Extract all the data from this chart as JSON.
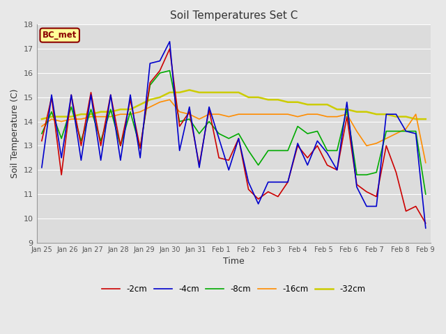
{
  "title": "Soil Temperatures Set C",
  "xlabel": "Time",
  "ylabel": "Soil Temperature (C)",
  "ylim": [
    9.0,
    18.0
  ],
  "yticks": [
    9.0,
    10.0,
    11.0,
    12.0,
    13.0,
    14.0,
    15.0,
    16.0,
    17.0,
    18.0
  ],
  "annotation_text": "BC_met",
  "annotation_bg": "#FFFF99",
  "annotation_edge": "#8B0000",
  "fig_bg": "#E8E8E8",
  "plot_bg": "#DCDCDC",
  "series": {
    "-2cm": {
      "color": "#CC0000",
      "lw": 1.2
    },
    "-4cm": {
      "color": "#0000CC",
      "lw": 1.2
    },
    "-8cm": {
      "color": "#00AA00",
      "lw": 1.2
    },
    "-16cm": {
      "color": "#FF8C00",
      "lw": 1.2
    },
    "-32cm": {
      "color": "#CCCC00",
      "lw": 1.8
    }
  },
  "xtick_labels": [
    "Jan 25",
    "Jan 26",
    "Jan 27",
    "Jan 28",
    "Jan 29",
    "Jan 30",
    "Jan 31",
    "Feb 1",
    "Feb 2",
    "Feb 3",
    "Feb 4",
    "Feb 5",
    "Feb 6",
    "Feb 7",
    "Feb 8",
    "Feb 9"
  ],
  "data_2cm": [
    13.2,
    15.0,
    11.8,
    15.1,
    13.0,
    15.2,
    13.0,
    15.1,
    13.0,
    14.9,
    12.9,
    15.6,
    16.1,
    17.0,
    13.8,
    14.4,
    12.2,
    14.5,
    12.5,
    12.4,
    13.3,
    11.2,
    10.8,
    11.1,
    10.9,
    11.5,
    13.0,
    12.5,
    13.0,
    12.2,
    12.0,
    14.2,
    11.4,
    11.1,
    10.9,
    13.0,
    11.9,
    10.3,
    10.5,
    9.8
  ],
  "data_4cm": [
    12.1,
    15.1,
    12.5,
    15.1,
    12.4,
    15.1,
    12.4,
    15.1,
    12.4,
    15.1,
    12.5,
    16.4,
    16.5,
    17.3,
    12.8,
    14.6,
    12.1,
    14.6,
    13.3,
    12.0,
    13.3,
    11.5,
    10.6,
    11.5,
    11.5,
    11.5,
    13.1,
    12.2,
    13.2,
    12.7,
    12.0,
    14.8,
    11.3,
    10.5,
    10.5,
    14.3,
    14.3,
    13.6,
    13.5,
    9.6
  ],
  "data_8cm": [
    13.5,
    14.4,
    13.3,
    14.6,
    13.2,
    14.5,
    13.2,
    14.5,
    13.0,
    14.4,
    12.9,
    15.5,
    16.0,
    16.1,
    14.0,
    14.1,
    13.5,
    14.0,
    13.5,
    13.3,
    13.5,
    12.8,
    12.2,
    12.8,
    12.8,
    12.8,
    13.8,
    13.5,
    13.6,
    12.8,
    12.8,
    14.5,
    11.8,
    11.8,
    11.9,
    13.6,
    13.6,
    13.6,
    13.6,
    11.0
  ],
  "data_16cm": [
    13.8,
    14.1,
    14.0,
    14.1,
    14.1,
    14.2,
    14.2,
    14.2,
    14.3,
    14.3,
    14.4,
    14.6,
    14.8,
    14.9,
    14.4,
    14.3,
    14.1,
    14.3,
    14.3,
    14.2,
    14.3,
    14.3,
    14.3,
    14.3,
    14.3,
    14.3,
    14.2,
    14.3,
    14.3,
    14.2,
    14.2,
    14.3,
    13.6,
    13.0,
    13.1,
    13.3,
    13.5,
    13.7,
    14.3,
    12.3
  ],
  "data_32cm": [
    14.1,
    14.2,
    14.2,
    14.2,
    14.3,
    14.3,
    14.4,
    14.4,
    14.5,
    14.5,
    14.7,
    14.9,
    15.0,
    15.2,
    15.2,
    15.3,
    15.2,
    15.2,
    15.2,
    15.2,
    15.2,
    15.0,
    15.0,
    14.9,
    14.9,
    14.8,
    14.8,
    14.7,
    14.7,
    14.7,
    14.5,
    14.5,
    14.4,
    14.4,
    14.3,
    14.3,
    14.2,
    14.2,
    14.1,
    14.1
  ]
}
